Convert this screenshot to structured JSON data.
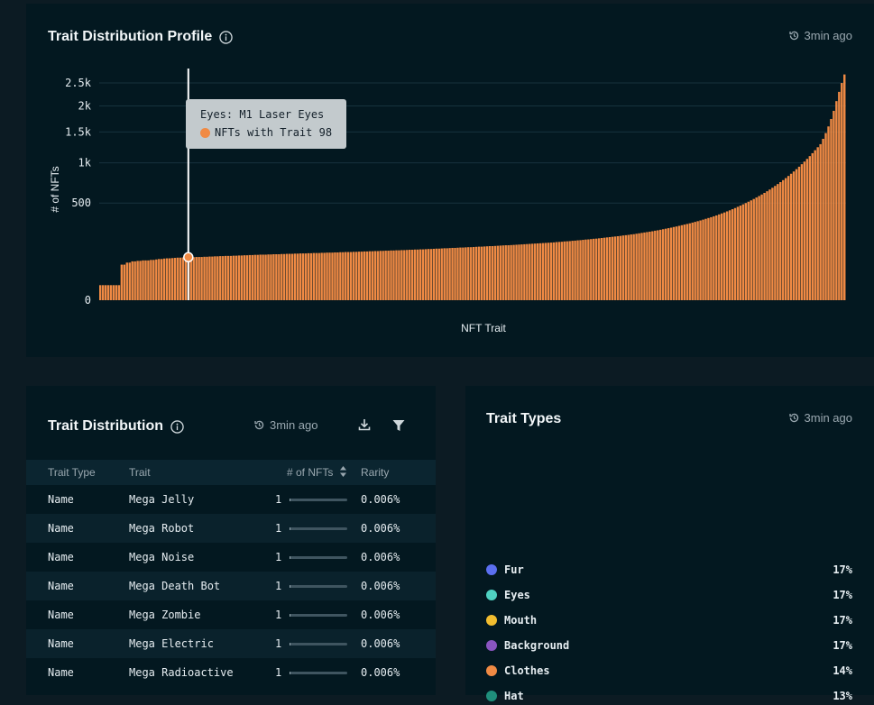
{
  "profile": {
    "title": "Trait Distribution Profile",
    "updated": "3min ago",
    "tooltip": {
      "trait": "Eyes: M1 Laser Eyes",
      "series_label": "NFTs with Trait 98"
    }
  },
  "chart_data": {
    "type": "bar",
    "xlabel": "NFT Trait",
    "ylabel": "# of NFTs",
    "y_scale": "sqrt",
    "y_ticks": [
      0,
      500,
      1000,
      1500,
      2000,
      2500
    ],
    "y_tick_labels": [
      "0",
      "500",
      "1k",
      "1.5k",
      "2k",
      "2.5k"
    ],
    "ylim": [
      0,
      2800
    ],
    "bar_color": "#f08a44",
    "highlight_value": 98,
    "values": [
      12,
      12,
      12,
      12,
      12,
      12,
      12,
      12,
      67,
      67,
      75,
      75,
      80,
      80,
      82,
      82,
      84,
      84,
      84,
      86,
      86,
      88,
      90,
      90,
      92,
      93,
      93,
      94,
      95,
      96,
      96,
      97,
      97,
      98,
      98,
      98,
      99,
      99,
      99,
      100,
      100,
      101,
      101,
      102,
      102,
      103,
      103,
      104,
      104,
      104,
      105,
      105,
      106,
      106,
      107,
      107,
      108,
      108,
      109,
      109,
      110,
      110,
      110,
      111,
      111,
      112,
      112,
      112,
      113,
      113,
      114,
      114,
      114,
      115,
      115,
      116,
      116,
      116,
      117,
      117,
      118,
      118,
      118,
      119,
      119,
      120,
      120,
      120,
      121,
      121,
      122,
      122,
      123,
      123,
      123,
      124,
      124,
      125,
      125,
      126,
      126,
      127,
      127,
      128,
      128,
      129,
      129,
      130,
      130,
      131,
      131,
      132,
      132,
      133,
      133,
      134,
      135,
      135,
      136,
      136,
      137,
      137,
      138,
      139,
      139,
      140,
      141,
      141,
      142,
      143,
      143,
      144,
      145,
      145,
      146,
      147,
      147,
      148,
      149,
      149,
      150,
      151,
      152,
      152,
      153,
      154,
      155,
      155,
      156,
      157,
      158,
      159,
      160,
      160,
      161,
      162,
      163,
      164,
      165,
      166,
      167,
      168,
      169,
      170,
      171,
      172,
      173,
      174,
      175,
      176,
      177,
      179,
      180,
      181,
      183,
      184,
      185,
      187,
      188,
      190,
      191,
      193,
      195,
      196,
      198,
      200,
      201,
      203,
      205,
      207,
      209,
      211,
      213,
      215,
      217,
      219,
      222,
      224,
      226,
      229,
      231,
      234,
      237,
      240,
      243,
      246,
      249,
      252,
      256,
      259,
      263,
      267,
      271,
      275,
      279,
      284,
      288,
      293,
      298,
      303,
      308,
      313,
      319,
      325,
      331,
      337,
      344,
      351,
      358,
      365,
      373,
      381,
      390,
      399,
      408,
      418,
      428,
      439,
      450,
      462,
      474,
      487,
      500,
      514,
      528,
      543,
      559,
      575,
      592,
      610,
      629,
      649,
      670,
      692,
      715,
      739,
      764,
      790,
      818,
      847,
      878,
      910,
      944,
      980,
      1018,
      1058,
      1100,
      1145,
      1192,
      1240,
      1290,
      1380,
      1480,
      1600,
      1740,
      1900,
      2100,
      2300,
      2500,
      2700
    ]
  },
  "distribution": {
    "title": "Trait Distribution",
    "updated": "3min ago",
    "columns": [
      "Trait Type",
      "Trait",
      "# of NFTs",
      "Rarity"
    ],
    "rows": [
      {
        "type": "Name",
        "trait": "Mega Jelly",
        "count": "1",
        "count_fraction": 0.02,
        "rarity": "0.006%"
      },
      {
        "type": "Name",
        "trait": "Mega Robot",
        "count": "1",
        "count_fraction": 0.02,
        "rarity": "0.006%"
      },
      {
        "type": "Name",
        "trait": "Mega Noise",
        "count": "1",
        "count_fraction": 0.02,
        "rarity": "0.006%"
      },
      {
        "type": "Name",
        "trait": "Mega Death Bot",
        "count": "1",
        "count_fraction": 0.02,
        "rarity": "0.006%"
      },
      {
        "type": "Name",
        "trait": "Mega Zombie",
        "count": "1",
        "count_fraction": 0.02,
        "rarity": "0.006%"
      },
      {
        "type": "Name",
        "trait": "Mega Electric",
        "count": "1",
        "count_fraction": 0.02,
        "rarity": "0.006%"
      },
      {
        "type": "Name",
        "trait": "Mega Radioactive",
        "count": "1",
        "count_fraction": 0.02,
        "rarity": "0.006%"
      }
    ]
  },
  "types": {
    "title": "Trait Types",
    "updated": "3min ago",
    "items": [
      {
        "label": "Fur",
        "pct": "17%",
        "color": "#5b6ff0"
      },
      {
        "label": "Eyes",
        "pct": "17%",
        "color": "#4fd1c1"
      },
      {
        "label": "Mouth",
        "pct": "17%",
        "color": "#f2bd2f"
      },
      {
        "label": "Background",
        "pct": "17%",
        "color": "#8a55c0"
      },
      {
        "label": "Clothes",
        "pct": "14%",
        "color": "#f08a44"
      },
      {
        "label": "Hat",
        "pct": "13%",
        "color": "#1f8f7c"
      }
    ]
  }
}
